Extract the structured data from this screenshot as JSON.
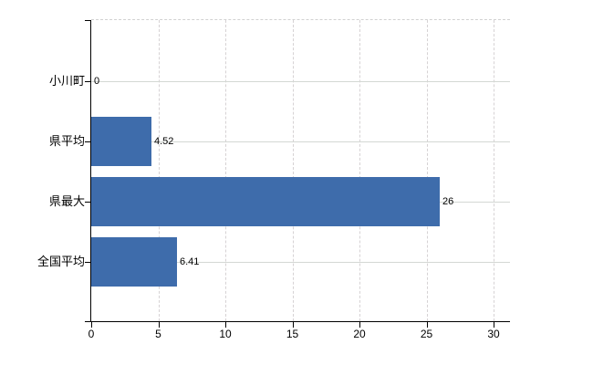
{
  "chart_data": {
    "type": "bar",
    "orientation": "horizontal",
    "title": "",
    "xlabel": "",
    "ylabel": "",
    "categories": [
      "小川町",
      "県平均",
      "県最大",
      "全国平均"
    ],
    "values": [
      0,
      4.52,
      26,
      6.41
    ],
    "value_labels": [
      "0",
      "4.52",
      "26",
      "6.41"
    ],
    "x_ticks": [
      0,
      5,
      10,
      15,
      20,
      25,
      30
    ],
    "x_tick_labels": [
      "0",
      "5",
      "10",
      "15",
      "20",
      "25",
      "30"
    ],
    "xlim": [
      0,
      31.2
    ],
    "grid": true,
    "legend": "none",
    "colors": {
      "bar": "#3e6cab",
      "gridline_vertical": "#d6d2d4",
      "gridline_horizontal": "#d4d8d4",
      "plot_top_border": "#d2d2d2",
      "axis": "#000000",
      "text": "#000000",
      "background": "#ffffff"
    }
  }
}
